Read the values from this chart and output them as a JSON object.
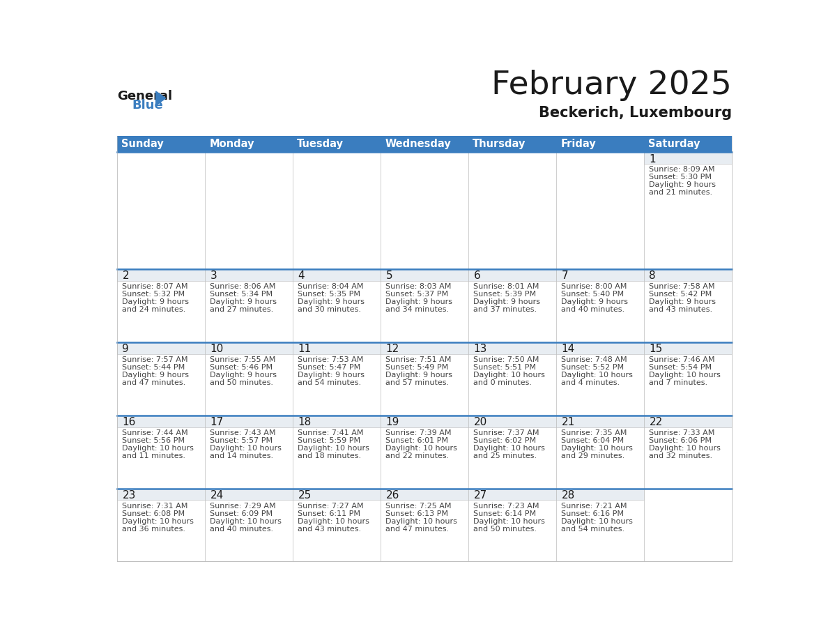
{
  "title": "February 2025",
  "subtitle": "Beckerich, Luxembourg",
  "days_of_week": [
    "Sunday",
    "Monday",
    "Tuesday",
    "Wednesday",
    "Thursday",
    "Friday",
    "Saturday"
  ],
  "header_bg": "#3a7dbf",
  "header_text": "#ffffff",
  "cell_bg_daynum": "#e8edf2",
  "cell_bg_main": "#ffffff",
  "title_color": "#1a1a1a",
  "subtitle_color": "#1a1a1a",
  "day_number_color": "#1a1a1a",
  "info_color": "#444444",
  "divider_color": "#3a7dbf",
  "border_color": "#bbbbbb",
  "logo_text_color": "#1a1a1a",
  "logo_blue_color": "#3a7dbf",
  "calendar_data": [
    [
      null,
      null,
      null,
      null,
      null,
      null,
      {
        "day": 1,
        "sunrise": "8:09 AM",
        "sunset": "5:30 PM",
        "daylight_h": "9",
        "daylight_m": "21"
      }
    ],
    [
      {
        "day": 2,
        "sunrise": "8:07 AM",
        "sunset": "5:32 PM",
        "daylight_h": "9",
        "daylight_m": "24"
      },
      {
        "day": 3,
        "sunrise": "8:06 AM",
        "sunset": "5:34 PM",
        "daylight_h": "9",
        "daylight_m": "27"
      },
      {
        "day": 4,
        "sunrise": "8:04 AM",
        "sunset": "5:35 PM",
        "daylight_h": "9",
        "daylight_m": "30"
      },
      {
        "day": 5,
        "sunrise": "8:03 AM",
        "sunset": "5:37 PM",
        "daylight_h": "9",
        "daylight_m": "34"
      },
      {
        "day": 6,
        "sunrise": "8:01 AM",
        "sunset": "5:39 PM",
        "daylight_h": "9",
        "daylight_m": "37"
      },
      {
        "day": 7,
        "sunrise": "8:00 AM",
        "sunset": "5:40 PM",
        "daylight_h": "9",
        "daylight_m": "40"
      },
      {
        "day": 8,
        "sunrise": "7:58 AM",
        "sunset": "5:42 PM",
        "daylight_h": "9",
        "daylight_m": "43"
      }
    ],
    [
      {
        "day": 9,
        "sunrise": "7:57 AM",
        "sunset": "5:44 PM",
        "daylight_h": "9",
        "daylight_m": "47"
      },
      {
        "day": 10,
        "sunrise": "7:55 AM",
        "sunset": "5:46 PM",
        "daylight_h": "9",
        "daylight_m": "50"
      },
      {
        "day": 11,
        "sunrise": "7:53 AM",
        "sunset": "5:47 PM",
        "daylight_h": "9",
        "daylight_m": "54"
      },
      {
        "day": 12,
        "sunrise": "7:51 AM",
        "sunset": "5:49 PM",
        "daylight_h": "9",
        "daylight_m": "57"
      },
      {
        "day": 13,
        "sunrise": "7:50 AM",
        "sunset": "5:51 PM",
        "daylight_h": "10",
        "daylight_m": "0"
      },
      {
        "day": 14,
        "sunrise": "7:48 AM",
        "sunset": "5:52 PM",
        "daylight_h": "10",
        "daylight_m": "4"
      },
      {
        "day": 15,
        "sunrise": "7:46 AM",
        "sunset": "5:54 PM",
        "daylight_h": "10",
        "daylight_m": "7"
      }
    ],
    [
      {
        "day": 16,
        "sunrise": "7:44 AM",
        "sunset": "5:56 PM",
        "daylight_h": "10",
        "daylight_m": "11"
      },
      {
        "day": 17,
        "sunrise": "7:43 AM",
        "sunset": "5:57 PM",
        "daylight_h": "10",
        "daylight_m": "14"
      },
      {
        "day": 18,
        "sunrise": "7:41 AM",
        "sunset": "5:59 PM",
        "daylight_h": "10",
        "daylight_m": "18"
      },
      {
        "day": 19,
        "sunrise": "7:39 AM",
        "sunset": "6:01 PM",
        "daylight_h": "10",
        "daylight_m": "22"
      },
      {
        "day": 20,
        "sunrise": "7:37 AM",
        "sunset": "6:02 PM",
        "daylight_h": "10",
        "daylight_m": "25"
      },
      {
        "day": 21,
        "sunrise": "7:35 AM",
        "sunset": "6:04 PM",
        "daylight_h": "10",
        "daylight_m": "29"
      },
      {
        "day": 22,
        "sunrise": "7:33 AM",
        "sunset": "6:06 PM",
        "daylight_h": "10",
        "daylight_m": "32"
      }
    ],
    [
      {
        "day": 23,
        "sunrise": "7:31 AM",
        "sunset": "6:08 PM",
        "daylight_h": "10",
        "daylight_m": "36"
      },
      {
        "day": 24,
        "sunrise": "7:29 AM",
        "sunset": "6:09 PM",
        "daylight_h": "10",
        "daylight_m": "40"
      },
      {
        "day": 25,
        "sunrise": "7:27 AM",
        "sunset": "6:11 PM",
        "daylight_h": "10",
        "daylight_m": "43"
      },
      {
        "day": 26,
        "sunrise": "7:25 AM",
        "sunset": "6:13 PM",
        "daylight_h": "10",
        "daylight_m": "47"
      },
      {
        "day": 27,
        "sunrise": "7:23 AM",
        "sunset": "6:14 PM",
        "daylight_h": "10",
        "daylight_m": "50"
      },
      {
        "day": 28,
        "sunrise": "7:21 AM",
        "sunset": "6:16 PM",
        "daylight_h": "10",
        "daylight_m": "54"
      },
      null
    ]
  ]
}
